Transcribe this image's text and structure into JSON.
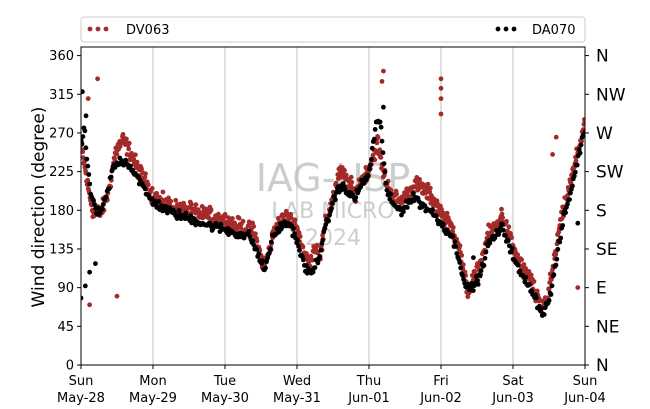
{
  "chart_data": {
    "type": "scatter",
    "ylabel": "Wind direction (degree)",
    "ylim": [
      0,
      370
    ],
    "yticks": [
      0,
      45,
      90,
      135,
      180,
      225,
      270,
      315,
      360
    ],
    "compass_labels": [
      "N",
      "NE",
      "E",
      "SE",
      "S",
      "SW",
      "W",
      "NW",
      "N"
    ],
    "x_range_days": [
      0,
      7
    ],
    "x_tick_days": [
      0,
      1,
      2,
      3,
      4,
      5,
      6,
      7
    ],
    "x_tick_labels": [
      [
        "Sun",
        "May-28"
      ],
      [
        "Mon",
        "May-29"
      ],
      [
        "Tue",
        "May-30"
      ],
      [
        "Wed",
        "May-31"
      ],
      [
        "Thu",
        "Jun-01"
      ],
      [
        "Fri",
        "Jun-02"
      ],
      [
        "Sat",
        "Jun-03"
      ],
      [
        "Sun",
        "Jun-04"
      ]
    ],
    "vertical_grid": true,
    "legend_position": "top",
    "watermark": [
      "IAG-USP",
      "LAB MICRO",
      "2024"
    ],
    "series": [
      {
        "name": "DV063",
        "color": "#a52a2a",
        "trend": [
          [
            0.0,
            255
          ],
          [
            0.05,
            232
          ],
          [
            0.1,
            205
          ],
          [
            0.18,
            175
          ],
          [
            0.28,
            178
          ],
          [
            0.38,
            200
          ],
          [
            0.48,
            248
          ],
          [
            0.58,
            262
          ],
          [
            0.68,
            248
          ],
          [
            0.78,
            230
          ],
          [
            0.88,
            215
          ],
          [
            0.98,
            200
          ],
          [
            1.1,
            190
          ],
          [
            1.25,
            185
          ],
          [
            1.4,
            180
          ],
          [
            1.55,
            178
          ],
          [
            1.7,
            175
          ],
          [
            1.85,
            172
          ],
          [
            2.0,
            168
          ],
          [
            2.15,
            162
          ],
          [
            2.3,
            158
          ],
          [
            2.4,
            155
          ],
          [
            2.5,
            125
          ],
          [
            2.55,
            115
          ],
          [
            2.62,
            135
          ],
          [
            2.7,
            160
          ],
          [
            2.85,
            172
          ],
          [
            3.0,
            160
          ],
          [
            3.1,
            130
          ],
          [
            3.18,
            118
          ],
          [
            3.25,
            140
          ],
          [
            3.32,
            125
          ],
          [
            3.4,
            165
          ],
          [
            3.5,
            195
          ],
          [
            3.6,
            225
          ],
          [
            3.7,
            215
          ],
          [
            3.8,
            200
          ],
          [
            3.9,
            215
          ],
          [
            4.0,
            230
          ],
          [
            4.05,
            240
          ],
          [
            4.12,
            260
          ],
          [
            4.18,
            230
          ],
          [
            4.25,
            210
          ],
          [
            4.35,
            195
          ],
          [
            4.45,
            190
          ],
          [
            4.55,
            200
          ],
          [
            4.65,
            210
          ],
          [
            4.75,
            205
          ],
          [
            4.85,
            198
          ],
          [
            4.95,
            185
          ],
          [
            5.05,
            170
          ],
          [
            5.15,
            160
          ],
          [
            5.25,
            140
          ],
          [
            5.32,
            105
          ],
          [
            5.38,
            85
          ],
          [
            5.45,
            100
          ],
          [
            5.55,
            115
          ],
          [
            5.65,
            150
          ],
          [
            5.75,
            160
          ],
          [
            5.85,
            175
          ],
          [
            5.95,
            150
          ],
          [
            6.05,
            125
          ],
          [
            6.15,
            110
          ],
          [
            6.25,
            100
          ],
          [
            6.32,
            80
          ],
          [
            6.4,
            65
          ],
          [
            6.48,
            80
          ],
          [
            6.55,
            110
          ],
          [
            6.65,
            160
          ],
          [
            6.75,
            195
          ],
          [
            6.85,
            230
          ],
          [
            6.95,
            265
          ],
          [
            7.0,
            285
          ]
        ],
        "outliers": [
          [
            0.12,
            70
          ],
          [
            0.23,
            333
          ],
          [
            0.5,
            80
          ],
          [
            0.1,
            310
          ],
          [
            4.2,
            342
          ],
          [
            4.18,
            330
          ],
          [
            5.0,
            333
          ],
          [
            5.0,
            322
          ],
          [
            5.0,
            310
          ],
          [
            5.0,
            292
          ],
          [
            6.9,
            90
          ],
          [
            6.6,
            265
          ],
          [
            6.55,
            245
          ]
        ]
      },
      {
        "name": "DA070",
        "color": "#000000",
        "trend": [
          [
            0.0,
            255
          ],
          [
            0.05,
            275
          ],
          [
            0.1,
            220
          ],
          [
            0.15,
            195
          ],
          [
            0.25,
            172
          ],
          [
            0.35,
            195
          ],
          [
            0.45,
            230
          ],
          [
            0.55,
            238
          ],
          [
            0.65,
            235
          ],
          [
            0.78,
            220
          ],
          [
            0.9,
            200
          ],
          [
            1.0,
            190
          ],
          [
            1.15,
            182
          ],
          [
            1.3,
            176
          ],
          [
            1.45,
            172
          ],
          [
            1.6,
            168
          ],
          [
            1.75,
            163
          ],
          [
            1.9,
            160
          ],
          [
            2.05,
            156
          ],
          [
            2.2,
            152
          ],
          [
            2.35,
            150
          ],
          [
            2.45,
            130
          ],
          [
            2.55,
            110
          ],
          [
            2.65,
            145
          ],
          [
            2.75,
            160
          ],
          [
            2.9,
            165
          ],
          [
            3.0,
            145
          ],
          [
            3.1,
            115
          ],
          [
            3.2,
            105
          ],
          [
            3.3,
            125
          ],
          [
            3.4,
            160
          ],
          [
            3.5,
            190
          ],
          [
            3.6,
            210
          ],
          [
            3.7,
            200
          ],
          [
            3.8,
            195
          ],
          [
            3.9,
            210
          ],
          [
            4.0,
            222
          ],
          [
            4.1,
            282
          ],
          [
            4.16,
            280
          ],
          [
            4.25,
            200
          ],
          [
            4.35,
            185
          ],
          [
            4.45,
            180
          ],
          [
            4.55,
            190
          ],
          [
            4.65,
            195
          ],
          [
            4.75,
            185
          ],
          [
            4.85,
            180
          ],
          [
            4.95,
            170
          ],
          [
            5.05,
            160
          ],
          [
            5.15,
            150
          ],
          [
            5.25,
            125
          ],
          [
            5.35,
            88
          ],
          [
            5.45,
            92
          ],
          [
            5.55,
            105
          ],
          [
            5.65,
            140
          ],
          [
            5.75,
            150
          ],
          [
            5.85,
            160
          ],
          [
            5.95,
            140
          ],
          [
            6.05,
            115
          ],
          [
            6.15,
            100
          ],
          [
            6.25,
            90
          ],
          [
            6.35,
            70
          ],
          [
            6.42,
            60
          ],
          [
            6.5,
            75
          ],
          [
            6.6,
            120
          ],
          [
            6.7,
            170
          ],
          [
            6.8,
            200
          ],
          [
            6.9,
            240
          ],
          [
            7.0,
            275
          ]
        ],
        "outliers": [
          [
            0.02,
            318
          ],
          [
            0.07,
            290
          ],
          [
            0.12,
            108
          ],
          [
            0.2,
            118
          ],
          [
            0.0,
            78
          ],
          [
            0.06,
            92
          ],
          [
            4.2,
            300
          ],
          [
            5.45,
            125
          ],
          [
            6.9,
            165
          ]
        ]
      }
    ]
  }
}
